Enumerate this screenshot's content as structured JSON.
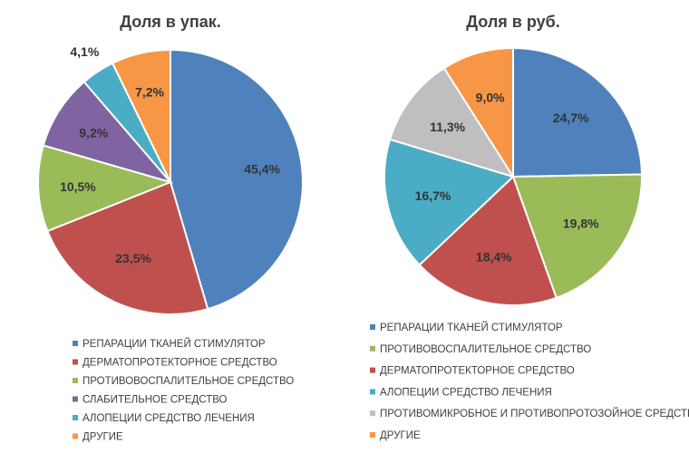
{
  "chart_data": [
    {
      "type": "pie",
      "title": "Доля в упак.",
      "categories": [
        "РЕПАРАЦИИ ТКАНЕЙ СТИМУЛЯТОР",
        "ДЕРМАТОПРОТЕКТОРНОЕ СРЕДСТВО",
        "ПРОТИВОВОСПАЛИТЕЛЬНОЕ СРЕДСТВО",
        "СЛАБИТЕЛЬНОЕ СРЕДСТВО",
        "АЛОПЕЦИИ СРЕДСТВО ЛЕЧЕНИЯ",
        "ДРУГИЕ"
      ],
      "values": [
        45.4,
        23.5,
        10.5,
        9.2,
        4.1,
        7.2
      ],
      "data_labels": [
        "45,4%",
        "23,5%",
        "10,5%",
        "9,2%",
        "4,1%",
        "7,2%"
      ],
      "colors": [
        "#4f81bd",
        "#c0504d",
        "#9bbb59",
        "#8064a2",
        "#4bacc6",
        "#f79646"
      ],
      "legend_position": "bottom"
    },
    {
      "type": "pie",
      "title": "Доля в руб.",
      "categories": [
        "РЕПАРАЦИИ ТКАНЕЙ СТИМУЛЯТОР",
        "ПРОТИВОВОСПАЛИТЕЛЬНОЕ СРЕДСТВО",
        "ДЕРМАТОПРОТЕКТОРНОЕ СРЕДСТВО",
        "АЛОПЕЦИИ СРЕДСТВО ЛЕЧЕНИЯ",
        "ПРОТИВОМИКРОБНОЕ И ПРОТИВОПРОТОЗОЙНОЕ СРЕДСТВО",
        "ДРУГИЕ"
      ],
      "values": [
        24.7,
        19.8,
        18.4,
        16.7,
        11.3,
        9.0
      ],
      "data_labels": [
        "24,7%",
        "19,8%",
        "18,4%",
        "16,7%",
        "11,3%",
        "9,0%"
      ],
      "colors": [
        "#4f81bd",
        "#9bbb59",
        "#c0504d",
        "#4bacc6",
        "#bfbfbf",
        "#f79646"
      ],
      "legend_position": "bottom"
    }
  ]
}
